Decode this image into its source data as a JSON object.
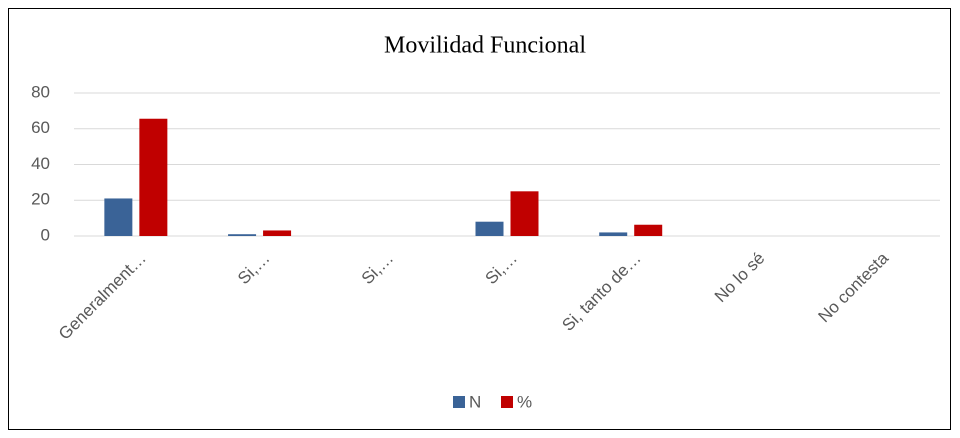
{
  "chart_data": {
    "type": "bar",
    "title": "Movilidad Funcional",
    "categories": [
      "Generalment…",
      "Si,…",
      "Si,…",
      "Si,…",
      "Si, tanto de…",
      "No lo sé",
      "No contesta"
    ],
    "series": [
      {
        "name": "N",
        "color": "#3a6397",
        "values": [
          21,
          1,
          0,
          8,
          2,
          0,
          0
        ]
      },
      {
        "name": "%",
        "color": "#c00000",
        "values": [
          65.6,
          3.1,
          0,
          25,
          6.3,
          0,
          0
        ]
      }
    ],
    "ylim": [
      0,
      80
    ],
    "yticks": [
      0,
      20,
      40,
      60,
      80
    ],
    "grid": true,
    "legend": "bottom"
  }
}
